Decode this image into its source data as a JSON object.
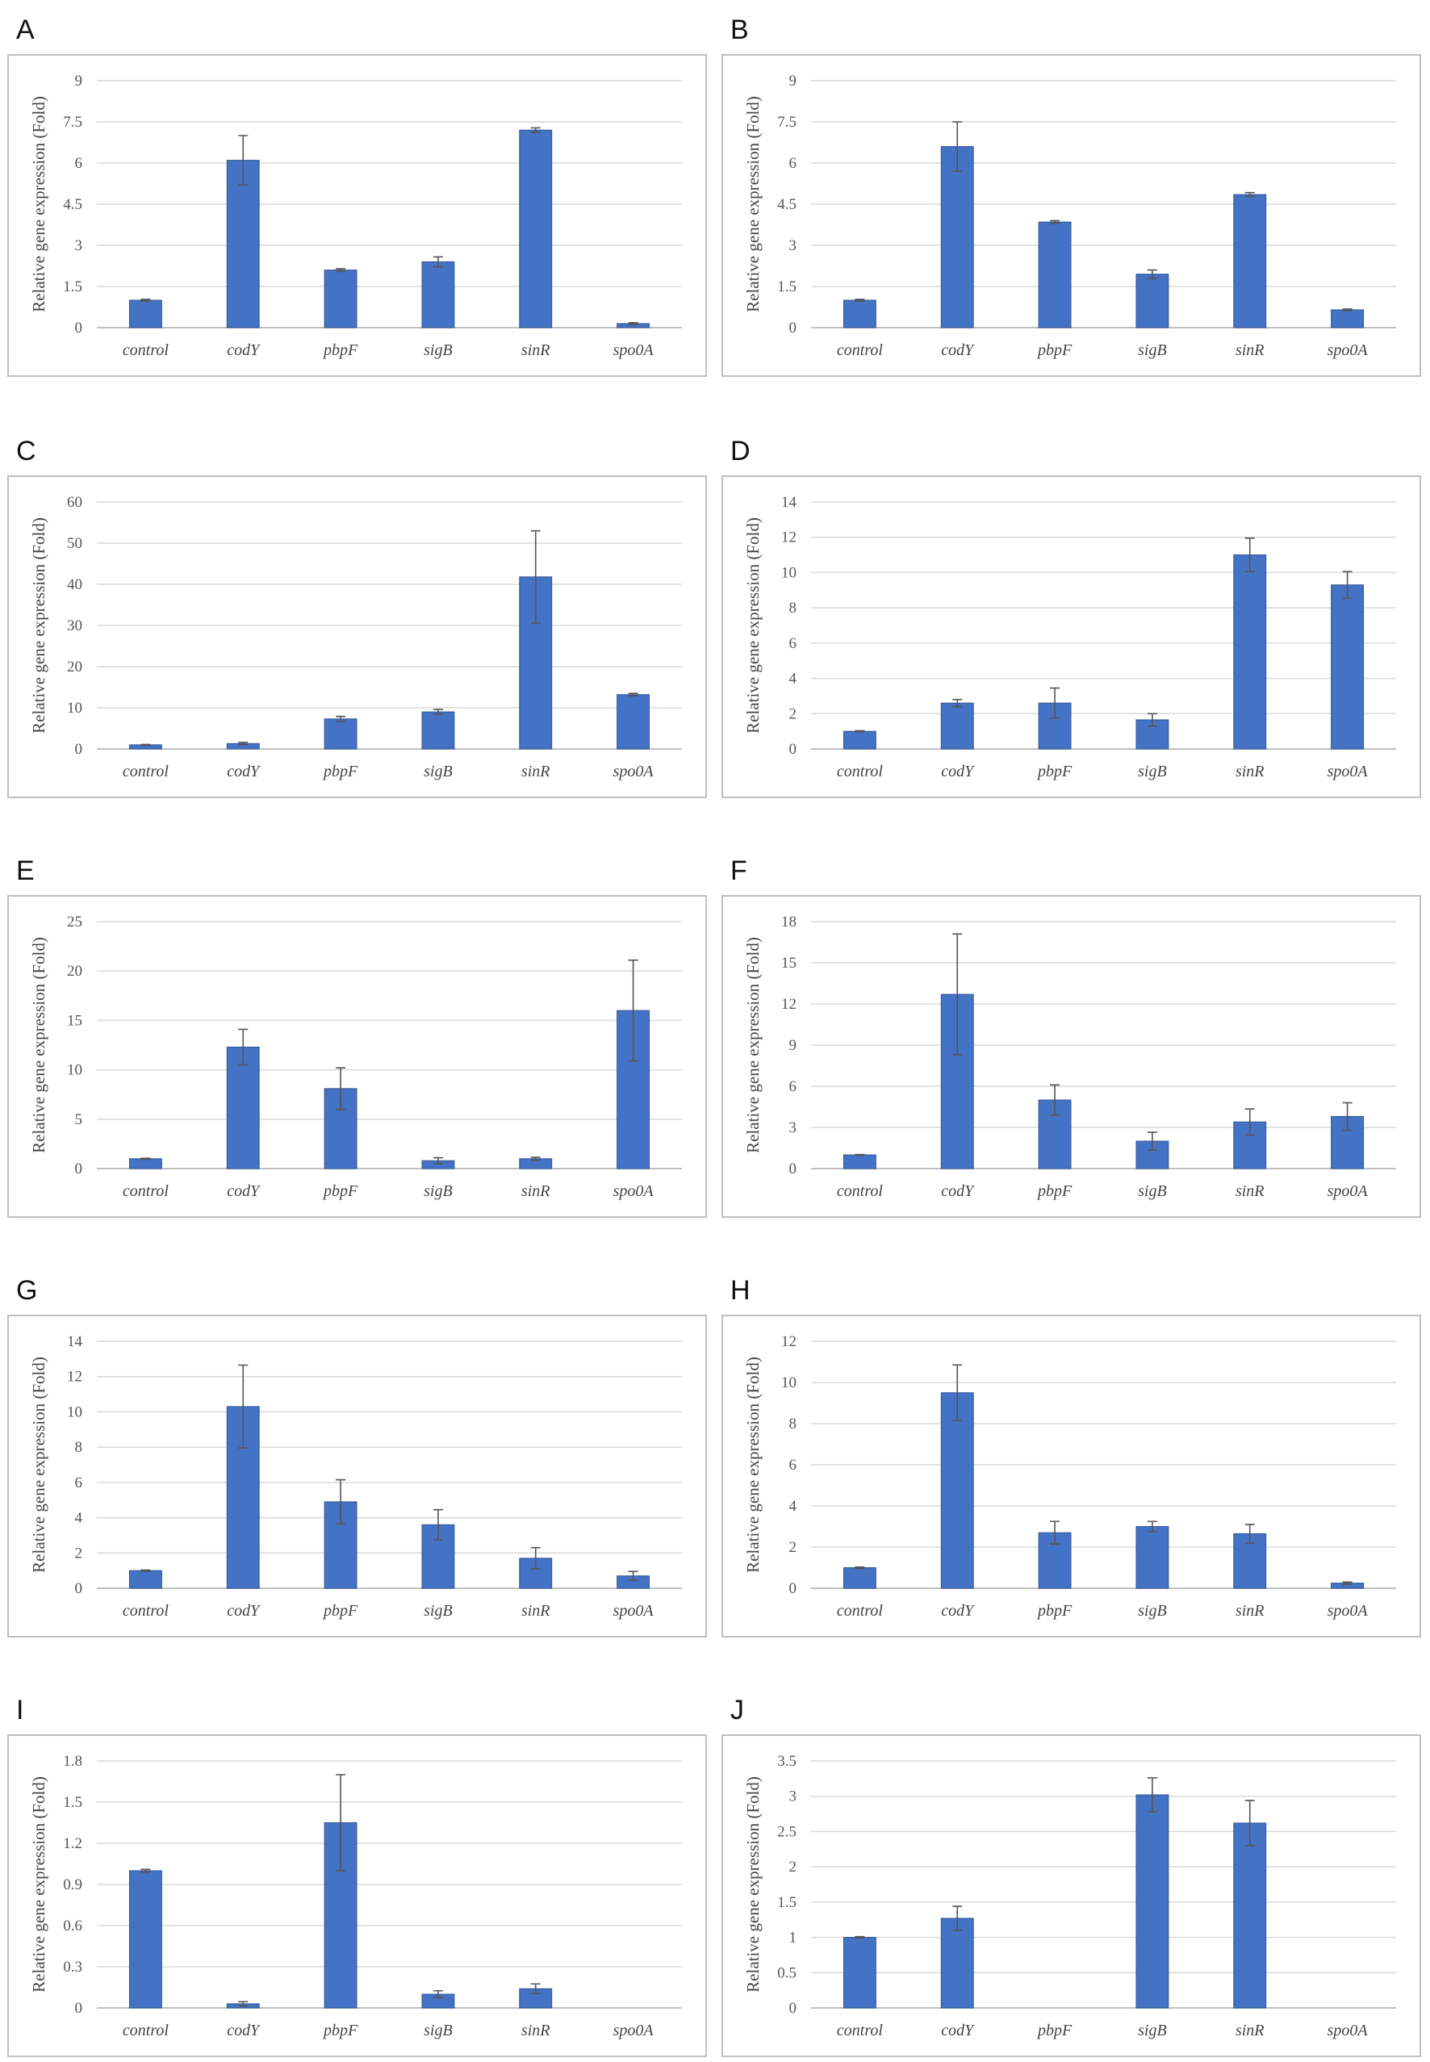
{
  "figure": {
    "colors": {
      "bar": "#4472c4",
      "error_bar": "#555555",
      "grid": "#d9d9d9",
      "frame": "#bfbfbf"
    }
  },
  "chart_data": [
    {
      "panel": "A",
      "type": "bar",
      "categories": [
        "control",
        "codY",
        "pbpF",
        "sigB",
        "sinR",
        "spo0A"
      ],
      "values": [
        1.0,
        6.1,
        2.1,
        2.4,
        7.2,
        0.15
      ],
      "errors": [
        0.03,
        0.9,
        0.05,
        0.18,
        0.08,
        0.03
      ],
      "ylabel": "Relative gene expression (Fold)",
      "ylim": [
        0,
        9
      ],
      "yticks": [
        "0",
        "1.5",
        "3",
        "4.5",
        "6",
        "7.5",
        "9"
      ],
      "grid": true
    },
    {
      "panel": "B",
      "type": "bar",
      "categories": [
        "control",
        "codY",
        "pbpF",
        "sigB",
        "sinR",
        "spo0A"
      ],
      "values": [
        1.0,
        6.6,
        3.85,
        1.95,
        4.85,
        0.65
      ],
      "errors": [
        0.03,
        0.9,
        0.05,
        0.15,
        0.07,
        0.03
      ],
      "ylabel": "Relative gene expression (Fold)",
      "ylim": [
        0,
        9
      ],
      "yticks": [
        "0",
        "1.5",
        "3",
        "4.5",
        "6",
        "7.5",
        "9"
      ],
      "grid": true
    },
    {
      "panel": "C",
      "type": "bar",
      "categories": [
        "control",
        "codY",
        "pbpF",
        "sigB",
        "sinR",
        "spo0A"
      ],
      "values": [
        1.0,
        1.3,
        7.3,
        9.0,
        41.8,
        13.2
      ],
      "errors": [
        0.1,
        0.3,
        0.6,
        0.6,
        11.2,
        0.3
      ],
      "ylabel": "Relative gene expression (Fold)",
      "ylim": [
        0,
        60
      ],
      "yticks": [
        "0",
        "10",
        "20",
        "30",
        "40",
        "50",
        "60"
      ],
      "grid": true
    },
    {
      "panel": "D",
      "type": "bar",
      "categories": [
        "control",
        "codY",
        "pbpF",
        "sigB",
        "sinR",
        "spo0A"
      ],
      "values": [
        1.0,
        2.6,
        2.6,
        1.65,
        11.0,
        9.3
      ],
      "errors": [
        0.03,
        0.2,
        0.85,
        0.35,
        0.95,
        0.75
      ],
      "ylabel": "Relative gene expression (Fold)",
      "ylim": [
        0,
        14
      ],
      "yticks": [
        "0",
        "2",
        "4",
        "6",
        "8",
        "10",
        "12",
        "14"
      ],
      "grid": true
    },
    {
      "panel": "E",
      "type": "bar",
      "categories": [
        "control",
        "codY",
        "pbpF",
        "sigB",
        "sinR",
        "spo0A"
      ],
      "values": [
        1.0,
        12.3,
        8.1,
        0.8,
        1.0,
        16.0
      ],
      "errors": [
        0.05,
        1.8,
        2.1,
        0.3,
        0.15,
        5.1
      ],
      "ylabel": "Relative gene expression (Fold)",
      "ylim": [
        0,
        25
      ],
      "yticks": [
        "0",
        "5",
        "10",
        "15",
        "20",
        "25"
      ],
      "grid": true
    },
    {
      "panel": "F",
      "type": "bar",
      "categories": [
        "control",
        "codY",
        "pbpF",
        "sigB",
        "sinR",
        "spo0A"
      ],
      "values": [
        1.0,
        12.7,
        5.0,
        2.0,
        3.4,
        3.8
      ],
      "errors": [
        0.03,
        4.4,
        1.1,
        0.65,
        0.95,
        1.0
      ],
      "ylabel": "Relative gene expression (Fold)",
      "ylim": [
        0,
        18
      ],
      "yticks": [
        "0",
        "3",
        "6",
        "9",
        "12",
        "15",
        "18"
      ],
      "grid": true
    },
    {
      "panel": "G",
      "type": "bar",
      "categories": [
        "control",
        "codY",
        "pbpF",
        "sigB",
        "sinR",
        "spo0A"
      ],
      "values": [
        1.0,
        10.3,
        4.9,
        3.6,
        1.7,
        0.7
      ],
      "errors": [
        0.03,
        2.35,
        1.25,
        0.85,
        0.6,
        0.25
      ],
      "ylabel": "Relative gene expression (Fold)",
      "ylim": [
        0,
        14
      ],
      "yticks": [
        "0",
        "2",
        "4",
        "6",
        "8",
        "10",
        "12",
        "14"
      ],
      "grid": true
    },
    {
      "panel": "H",
      "type": "bar",
      "categories": [
        "control",
        "codY",
        "pbpF",
        "sigB",
        "sinR",
        "spo0A"
      ],
      "values": [
        1.0,
        9.5,
        2.7,
        3.0,
        2.65,
        0.25
      ],
      "errors": [
        0.03,
        1.35,
        0.55,
        0.25,
        0.45,
        0.05
      ],
      "ylabel": "Relative gene expression (Fold)",
      "ylim": [
        0,
        12
      ],
      "yticks": [
        "0",
        "2",
        "4",
        "6",
        "8",
        "10",
        "12"
      ],
      "grid": true
    },
    {
      "panel": "I",
      "type": "bar",
      "categories": [
        "control",
        "codY",
        "pbpF",
        "sigB",
        "sinR",
        "spo0A"
      ],
      "values": [
        1.0,
        0.03,
        1.35,
        0.1,
        0.14,
        0
      ],
      "errors": [
        0.01,
        0.015,
        0.35,
        0.025,
        0.035,
        0
      ],
      "ylabel": "Relative gene expression (Fold)",
      "ylim": [
        0,
        1.8
      ],
      "yticks": [
        "0",
        "0.3",
        "0.6",
        "0.9",
        "1.2",
        "1.5",
        "1.8"
      ],
      "grid": true
    },
    {
      "panel": "J",
      "type": "bar",
      "categories": [
        "control",
        "codY",
        "pbpF",
        "sigB",
        "sinR",
        "spo0A"
      ],
      "values": [
        1.0,
        1.27,
        0,
        3.02,
        2.62,
        0
      ],
      "errors": [
        0.01,
        0.17,
        0,
        0.24,
        0.32,
        0
      ],
      "ylabel": "Relative gene expression (Fold)",
      "ylim": [
        0,
        3.5
      ],
      "yticks": [
        "0",
        "0.5",
        "1",
        "1.5",
        "2",
        "2.5",
        "3",
        "3.5"
      ],
      "grid": true
    }
  ]
}
